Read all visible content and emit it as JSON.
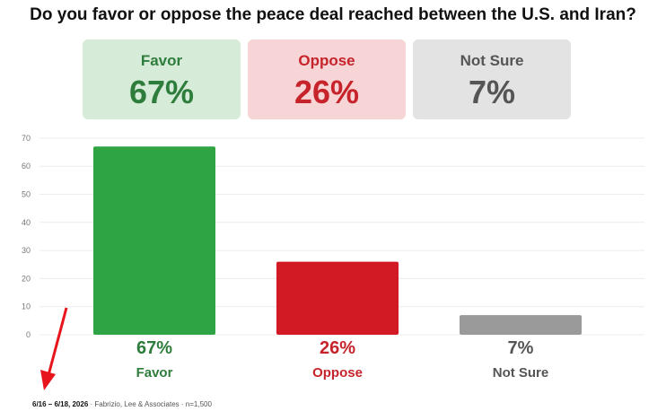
{
  "title": "Do you favor or oppose the peace deal reached between the U.S. and Iran?",
  "cards": [
    {
      "label": "Favor",
      "value": "67%",
      "bg": "#d7ecd8",
      "fg": "#2e7d3c"
    },
    {
      "label": "Oppose",
      "value": "26%",
      "bg": "#f7d4d5",
      "fg": "#c6232b"
    },
    {
      "label": "Not Sure",
      "value": "7%",
      "bg": "#e3e3e3",
      "fg": "#555555"
    }
  ],
  "chart_data": {
    "type": "bar",
    "categories": [
      "Favor",
      "Oppose",
      "Not Sure"
    ],
    "values": [
      67,
      26,
      7
    ],
    "value_labels": [
      "67%",
      "26%",
      "7%"
    ],
    "colors": [
      "#2ea444",
      "#d11a24",
      "#9a9a9a"
    ],
    "label_colors": [
      "#2e7d3c",
      "#c6232b",
      "#555555"
    ],
    "yticks": [
      0,
      10,
      20,
      30,
      40,
      50,
      60,
      70
    ],
    "ylim": [
      0,
      70
    ],
    "grid": true,
    "title": "",
    "xlabel": "",
    "ylabel": ""
  },
  "footer": {
    "dates": "6/16 – 6/18, 2026",
    "source": " · Fabrizio, Lee & Associates · n=1,500"
  }
}
